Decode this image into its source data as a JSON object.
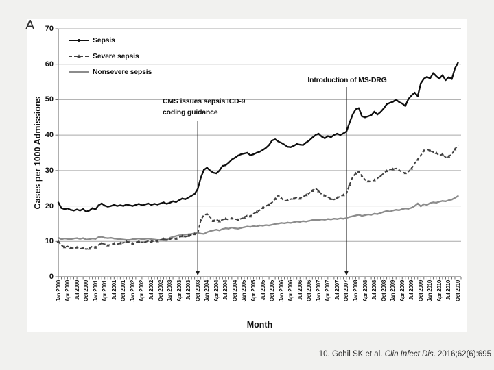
{
  "panel_label": "A",
  "citation": {
    "prefix": "10. Gohil SK et al. ",
    "journal": "Clin Infect Dis",
    "suffix": ". 2016;62(6):695"
  },
  "chart_data": {
    "type": "line",
    "title": "",
    "xlabel": "Month",
    "ylabel": "Cases per 1000 Admissions",
    "ylim": [
      0,
      70
    ],
    "yticks": [
      0,
      10,
      20,
      30,
      40,
      50,
      60,
      70
    ],
    "grid": "horizontal",
    "legend_position": "top-left-inside",
    "months_total": 130,
    "x_first_month": "Jan 2000",
    "x_last_month": "Oct 2010",
    "x_tick_label_interval_months": 3,
    "x_tick_labels": [
      "Jan 2000",
      "Apr 2000",
      "Jul 2000",
      "Oct 2000",
      "Jan 2001",
      "Apr 2001",
      "Jul 2001",
      "Oct 2001",
      "Jan 2002",
      "Apr 2002",
      "Jul 2002",
      "Oct 2002",
      "Jan 2003",
      "Apr 2003",
      "Jul 2003",
      "Oct 2003",
      "Jan 2004",
      "Apr 2004",
      "Jul 2004",
      "Oct 2004",
      "Jan 2005",
      "Apr 2005",
      "Jul 2005",
      "Oct 2005",
      "Jan 2006",
      "Apr 2006",
      "Jul 2006",
      "Oct 2006",
      "Jan 2007",
      "Apr 2007",
      "Jul 2007",
      "Oct 2007",
      "Jan 2008",
      "Apr 2008",
      "Jul 2008",
      "Oct 2008",
      "Jan 2009",
      "Apr 2009",
      "Jul 2009",
      "Oct 2009",
      "Jan 2010",
      "Apr 2010",
      "Jul 2010",
      "Oct 2010"
    ],
    "series": [
      {
        "name": "Sepsis",
        "color": "#0f0f0f",
        "style": "solid",
        "marker": "circle",
        "values": [
          21.0,
          19.4,
          19.1,
          19.3,
          18.9,
          18.7,
          19.0,
          18.7,
          19.1,
          18.4,
          18.7,
          19.4,
          19.0,
          20.2,
          20.7,
          20.1,
          19.8,
          20.0,
          20.3,
          20.0,
          20.2,
          20.0,
          20.4,
          20.2,
          20.0,
          20.3,
          20.6,
          20.2,
          20.4,
          20.7,
          20.3,
          20.6,
          20.4,
          20.7,
          21.0,
          20.6,
          20.9,
          21.3,
          21.1,
          21.6,
          22.1,
          21.9,
          22.4,
          22.9,
          23.4,
          24.8,
          28.0,
          30.2,
          30.8,
          30.0,
          29.4,
          29.2,
          30.0,
          31.3,
          31.5,
          32.2,
          33.1,
          33.6,
          34.2,
          34.6,
          34.8,
          35.0,
          34.3,
          34.6,
          35.0,
          35.3,
          35.8,
          36.4,
          37.2,
          38.5,
          38.8,
          38.2,
          37.8,
          37.3,
          36.7,
          36.6,
          37.0,
          37.5,
          37.3,
          37.2,
          37.9,
          38.5,
          39.3,
          40.0,
          40.4,
          39.6,
          39.1,
          39.7,
          39.4,
          40.0,
          40.4,
          40.0,
          40.5,
          41.0,
          43.5,
          45.8,
          47.3,
          47.6,
          45.3,
          45.0,
          45.3,
          45.6,
          46.6,
          45.8,
          46.5,
          47.5,
          48.7,
          49.1,
          49.4,
          50.0,
          49.3,
          48.9,
          48.2,
          50.2,
          51.2,
          52.0,
          51.0,
          54.6,
          55.9,
          56.4,
          56.0,
          57.5,
          56.6,
          55.9,
          56.9,
          55.5,
          56.3,
          55.8,
          58.8,
          60.4
        ]
      },
      {
        "name": "Severe sepsis",
        "color": "#414141",
        "style": "dashed",
        "marker": "triangle",
        "values": [
          10.0,
          8.9,
          8.4,
          8.6,
          8.2,
          8.0,
          8.3,
          7.9,
          8.1,
          7.8,
          8.0,
          8.6,
          8.3,
          9.0,
          9.5,
          9.2,
          8.9,
          9.1,
          9.4,
          9.2,
          9.5,
          9.6,
          9.9,
          9.8,
          9.4,
          9.7,
          10.0,
          9.7,
          9.8,
          10.1,
          9.9,
          10.2,
          10.1,
          10.4,
          10.7,
          10.5,
          10.6,
          11.0,
          10.8,
          11.2,
          11.5,
          11.3,
          11.6,
          11.9,
          12.1,
          12.3,
          16.0,
          17.5,
          17.7,
          16.8,
          15.8,
          16.2,
          15.7,
          16.1,
          16.4,
          16.1,
          16.5,
          16.3,
          16.1,
          16.4,
          16.8,
          17.3,
          17.1,
          17.8,
          18.3,
          18.8,
          19.5,
          20.0,
          20.4,
          21.0,
          22.0,
          23.0,
          22.2,
          21.4,
          21.6,
          21.9,
          22.1,
          22.4,
          22.1,
          22.6,
          23.1,
          23.6,
          24.3,
          25.0,
          24.2,
          23.3,
          23.0,
          22.5,
          22.0,
          21.8,
          22.3,
          22.7,
          23.1,
          23.5,
          26.0,
          28.2,
          29.2,
          29.7,
          28.4,
          27.4,
          27.0,
          26.9,
          27.3,
          27.8,
          28.4,
          29.2,
          29.9,
          30.3,
          30.4,
          30.6,
          30.1,
          29.5,
          29.3,
          29.7,
          30.6,
          32.0,
          33.1,
          34.3,
          35.6,
          36.0,
          35.6,
          35.2,
          35.0,
          34.2,
          34.6,
          33.7,
          34.0,
          34.6,
          36.0,
          37.2
        ]
      },
      {
        "name": "Nonsevere sepsis",
        "color": "#8c8c8c",
        "style": "solid",
        "marker": "circle",
        "values": [
          11.0,
          10.6,
          10.8,
          10.7,
          10.6,
          10.8,
          10.9,
          10.7,
          10.9,
          10.5,
          10.6,
          10.8,
          10.7,
          11.2,
          11.3,
          11.0,
          10.9,
          11.0,
          10.8,
          10.7,
          10.6,
          10.5,
          10.4,
          10.4,
          10.6,
          10.7,
          10.8,
          10.6,
          10.7,
          10.8,
          10.6,
          10.5,
          10.4,
          10.4,
          10.3,
          10.2,
          11.0,
          11.3,
          11.5,
          11.7,
          11.8,
          11.9,
          12.0,
          12.1,
          12.3,
          12.4,
          12.2,
          12.1,
          12.6,
          12.9,
          13.1,
          13.3,
          13.1,
          13.5,
          13.7,
          13.6,
          13.9,
          13.7,
          13.6,
          13.8,
          14.0,
          14.2,
          14.1,
          14.3,
          14.2,
          14.5,
          14.4,
          14.6,
          14.5,
          14.7,
          14.9,
          15.0,
          15.2,
          15.1,
          15.3,
          15.2,
          15.4,
          15.6,
          15.5,
          15.7,
          15.6,
          15.8,
          16.0,
          16.1,
          16.0,
          16.2,
          16.1,
          16.3,
          16.2,
          16.4,
          16.3,
          16.5,
          16.4,
          16.6,
          16.9,
          17.1,
          17.3,
          17.5,
          17.2,
          17.4,
          17.6,
          17.5,
          17.8,
          17.7,
          18.0,
          18.3,
          18.6,
          18.4,
          18.7,
          18.9,
          18.8,
          19.1,
          19.3,
          19.2,
          19.5,
          20.0,
          20.7,
          19.9,
          20.5,
          20.3,
          20.8,
          21.0,
          20.9,
          21.2,
          21.4,
          21.3,
          21.6,
          21.8,
          22.3,
          22.8
        ]
      }
    ],
    "annotations": [
      {
        "lines": [
          "CMS issues sepsis ICD-9",
          "coding guidance"
        ],
        "month": "Oct 2003",
        "month_index": 45
      },
      {
        "lines": [
          "Introduction of MS-DRG"
        ],
        "month": "Oct 2007",
        "month_index": 93
      }
    ]
  }
}
